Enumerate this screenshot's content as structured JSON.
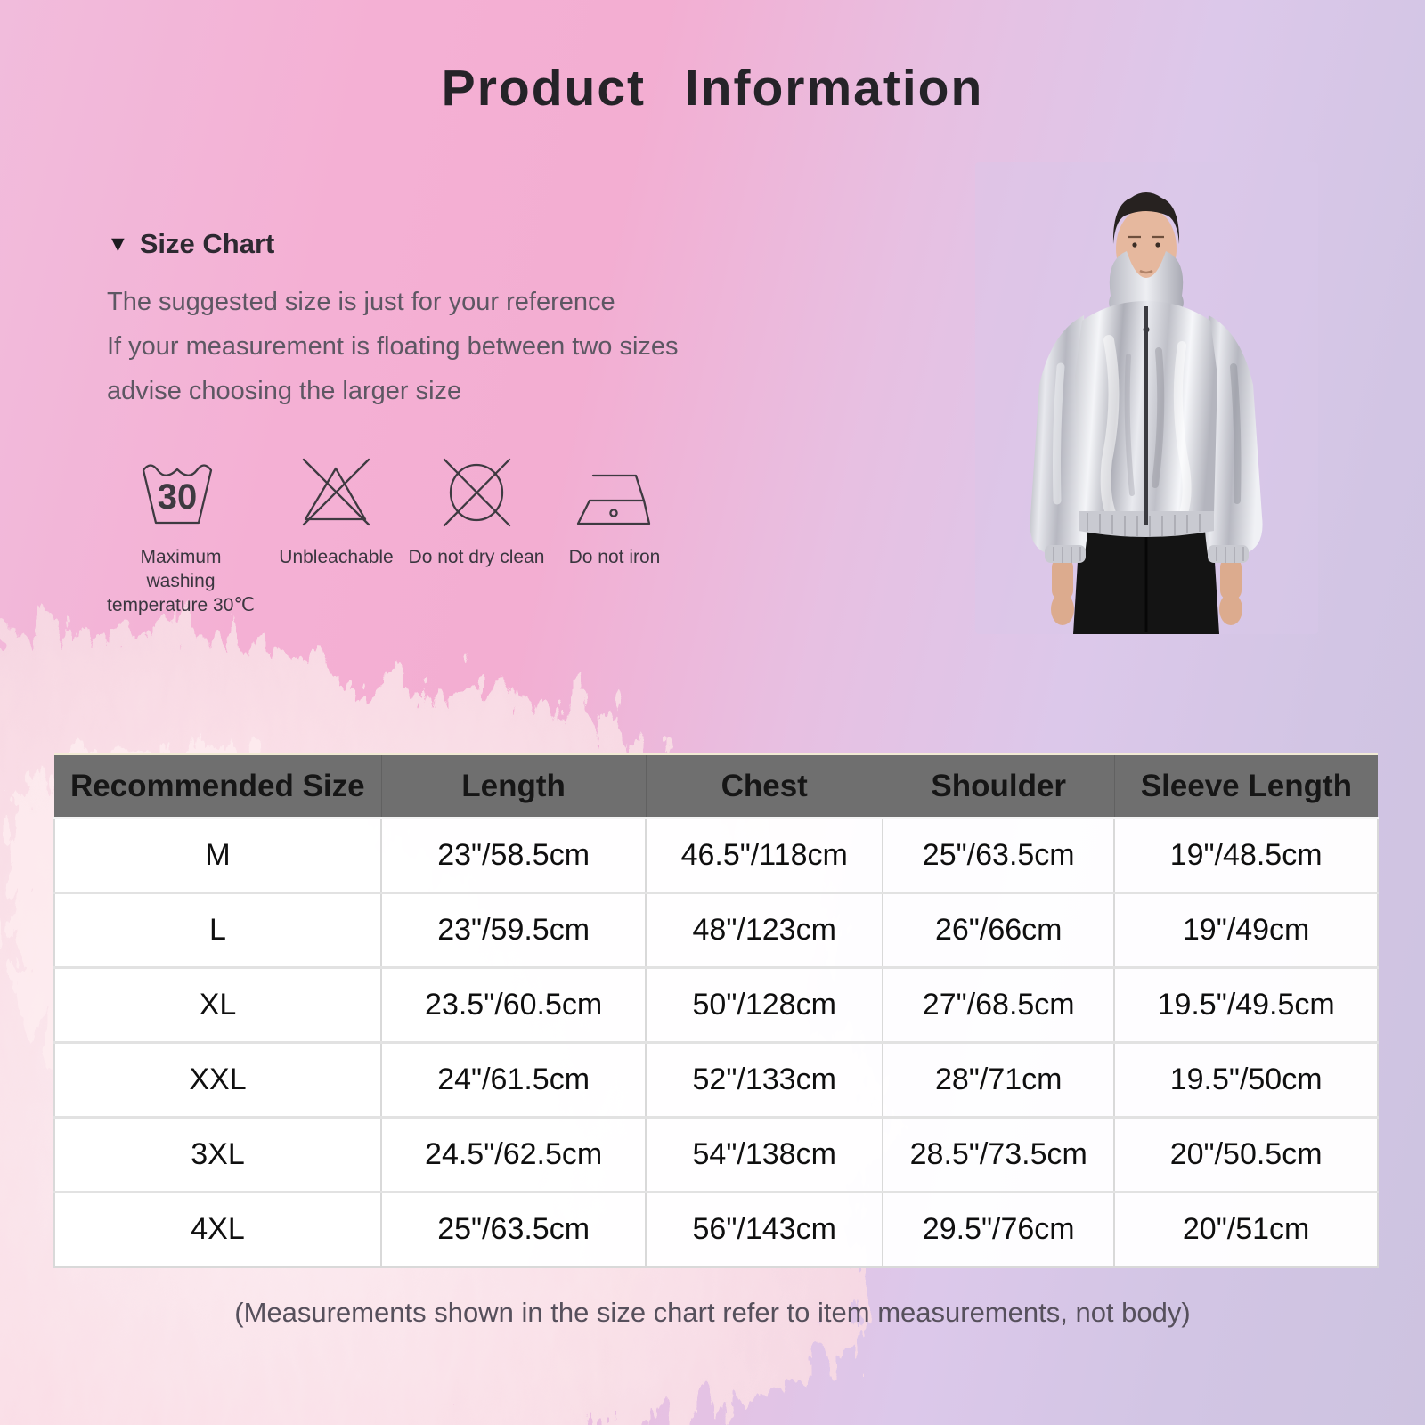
{
  "page": {
    "title": "Product Information",
    "footer_note": "(Measurements shown in the size chart refer to item measurements, not body)"
  },
  "size_chart": {
    "marker": "▼",
    "heading": "Size Chart",
    "description_lines": [
      "The suggested size is just for your reference",
      "If your measurement is floating between two sizes",
      "advise choosing the larger size"
    ]
  },
  "care_instructions": [
    {
      "icon": "wash-30-icon",
      "icon_value": "30",
      "label": "Maximum washing temperature 30℃"
    },
    {
      "icon": "no-bleach-icon",
      "label": "Unbleachable"
    },
    {
      "icon": "no-dry-clean-icon",
      "label": "Do not dry clean"
    },
    {
      "icon": "no-iron-icon",
      "label": "Do not iron"
    }
  ],
  "size_table": {
    "headers": [
      "Recommended Size",
      "Length",
      "Chest",
      "Shoulder",
      "Sleeve Length"
    ],
    "rows": [
      [
        "M",
        "23\"/58.5cm",
        "46.5\"/118cm",
        "25\"/63.5cm",
        "19\"/48.5cm"
      ],
      [
        "L",
        "23\"/59.5cm",
        "48\"/123cm",
        "26\"/66cm",
        "19\"/49cm"
      ],
      [
        "XL",
        "23.5\"/60.5cm",
        "50\"/128cm",
        "27\"/68.5cm",
        "19.5\"/49.5cm"
      ],
      [
        "XXL",
        "24\"/61.5cm",
        "52\"/133cm",
        "28\"/71cm",
        "19.5\"/50cm"
      ],
      [
        "3XL",
        "24.5\"/62.5cm",
        "54\"/138cm",
        "28.5\"/73.5cm",
        "20\"/50.5cm"
      ],
      [
        "4XL",
        "25\"/63.5cm",
        "56\"/143cm",
        "29.5\"/76cm",
        "20\"/51cm"
      ]
    ]
  },
  "colors": {
    "background_pink": "#f3aed2",
    "background_lavender": "#cdc3e0",
    "fur_pink": "#fae3e9",
    "table_header_bg": "#6f6f6f",
    "table_header_text": "#161616",
    "table_cell_bg": "#ffffff",
    "table_cell_text": "#0f0f0f",
    "jacket_silver": "#d6d7dd",
    "shorts_black": "#141414"
  }
}
